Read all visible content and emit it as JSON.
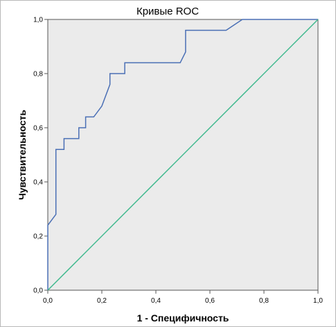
{
  "chart_data": {
    "type": "line",
    "title": "Кривые ROC",
    "xlabel": "1 - Специфичность",
    "ylabel": "Чувствительность",
    "xlim": [
      0,
      1
    ],
    "ylim": [
      0,
      1
    ],
    "x_ticks": [
      "0,0",
      "0,2",
      "0,4",
      "0,6",
      "0,8",
      "1,0"
    ],
    "y_ticks": [
      "0,0",
      "0,2",
      "0,4",
      "0,6",
      "0,8",
      "1,0"
    ],
    "grid": false,
    "plot_background": "#ebebeb",
    "series": [
      {
        "color": "#4a6fb5",
        "step": true,
        "points": [
          [
            0.0,
            0.0
          ],
          [
            0.0,
            0.24
          ],
          [
            0.03,
            0.28
          ],
          [
            0.03,
            0.52
          ],
          [
            0.06,
            0.52
          ],
          [
            0.06,
            0.56
          ],
          [
            0.115,
            0.56
          ],
          [
            0.115,
            0.6
          ],
          [
            0.14,
            0.6
          ],
          [
            0.14,
            0.64
          ],
          [
            0.17,
            0.64
          ],
          [
            0.2,
            0.68
          ],
          [
            0.23,
            0.76
          ],
          [
            0.23,
            0.8
          ],
          [
            0.285,
            0.8
          ],
          [
            0.285,
            0.84
          ],
          [
            0.49,
            0.84
          ],
          [
            0.51,
            0.88
          ],
          [
            0.51,
            0.96
          ],
          [
            0.66,
            0.96
          ],
          [
            0.72,
            1.0
          ],
          [
            1.0,
            1.0
          ]
        ]
      },
      {
        "color": "#3fb98e",
        "points": [
          [
            0,
            0
          ],
          [
            1,
            1
          ]
        ]
      }
    ]
  }
}
